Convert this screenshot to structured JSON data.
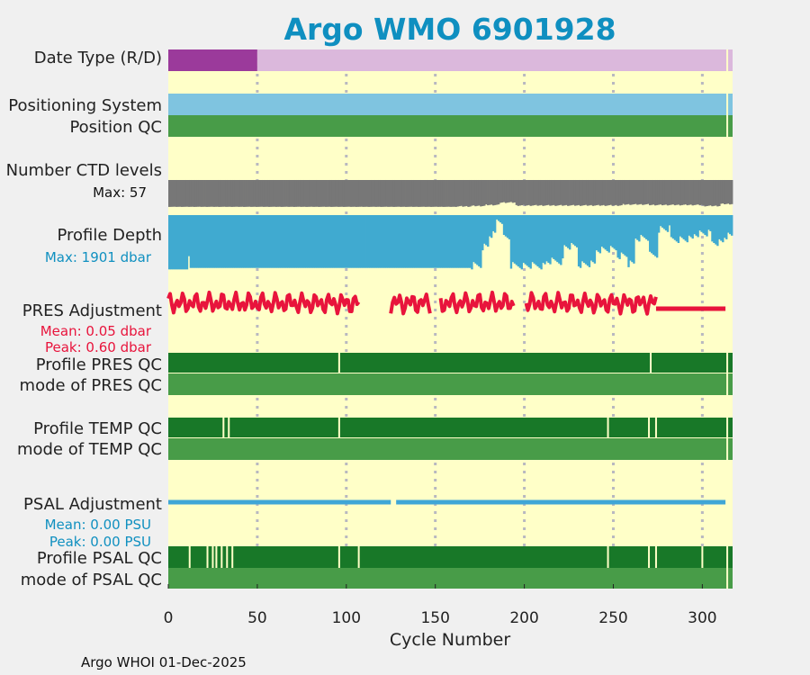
{
  "title": "Argo WMO 6901928",
  "footer": "Argo WHOI 01-Dec-2025",
  "colors": {
    "background": "#f0f0f0",
    "panel": "#ffffc8",
    "title": "#0f8fc0",
    "blue_text": "#1090c0",
    "red": "#e8143c",
    "dark_green": "#187828",
    "mid_green": "#489c48",
    "purple": "#9b3a9b",
    "light_purple": "#dbb8dc",
    "light_blue": "#7fc4e0",
    "gray": "#777777",
    "depth_blue": "#40aad0",
    "psal_blue": "#3fa6d6"
  },
  "chart_data": {
    "type": "multi-panel",
    "xlabel": "Cycle Number",
    "xlim": [
      0,
      317
    ],
    "xticks": [
      0,
      50,
      100,
      150,
      200,
      250,
      300
    ],
    "grid": "vertical dotted at x ticks",
    "rows": [
      {
        "name": "date-type",
        "label": "Date Type (R/D)",
        "segments": [
          {
            "from": 0,
            "to": 50,
            "color": "#9b3a9b"
          },
          {
            "from": 50,
            "to": 317,
            "color": "#dbb8dc"
          }
        ],
        "breaks": [
          314
        ]
      },
      {
        "name": "positioning-system",
        "label": "Positioning System",
        "segments": [
          {
            "from": 0,
            "to": 317,
            "color": "#7fc4e0"
          }
        ],
        "breaks": [
          314
        ]
      },
      {
        "name": "position-qc",
        "label": "Position QC",
        "segments": [
          {
            "from": 0,
            "to": 317,
            "color": "#489c48"
          }
        ],
        "breaks": [
          314
        ]
      },
      {
        "name": "profile-pres-qc",
        "label": "Profile PRES QC",
        "segments": [
          {
            "from": 0,
            "to": 317,
            "color": "#187828"
          }
        ],
        "breaks": [
          96,
          271,
          314
        ]
      },
      {
        "name": "mode-pres-qc",
        "label": "mode of PRES QC",
        "segments": [
          {
            "from": 0,
            "to": 317,
            "color": "#489c48"
          }
        ],
        "breaks": [
          314
        ]
      },
      {
        "name": "profile-temp-qc",
        "label": "Profile TEMP QC",
        "segments": [
          {
            "from": 0,
            "to": 317,
            "color": "#187828"
          }
        ],
        "breaks": [
          31,
          34,
          96,
          247,
          270,
          274,
          314
        ]
      },
      {
        "name": "mode-temp-qc",
        "label": "mode of TEMP QC",
        "segments": [
          {
            "from": 0,
            "to": 317,
            "color": "#489c48"
          }
        ],
        "breaks": [
          314
        ]
      },
      {
        "name": "profile-psal-qc",
        "label": "Profile PSAL QC",
        "segments": [
          {
            "from": 0,
            "to": 317,
            "color": "#187828"
          }
        ],
        "breaks": [
          12,
          22,
          25,
          27,
          30,
          33,
          36,
          96,
          107,
          247,
          270,
          274,
          300,
          314
        ]
      },
      {
        "name": "mode-psal-qc",
        "label": "mode of PSAL QC",
        "segments": [
          {
            "from": 0,
            "to": 317,
            "color": "#489c48"
          }
        ],
        "breaks": [
          314
        ]
      }
    ],
    "ctd_levels": {
      "label": "Number CTD levels",
      "max_label": "Max: 57",
      "max": 57,
      "breakpoints": [
        [
          0,
          55
        ],
        [
          170,
          54
        ],
        [
          178,
          52
        ],
        [
          186,
          47
        ],
        [
          195,
          53
        ],
        [
          240,
          53
        ],
        [
          255,
          51
        ],
        [
          270,
          52
        ],
        [
          300,
          54
        ],
        [
          310,
          50
        ],
        [
          317,
          44
        ]
      ]
    },
    "profile_depth": {
      "label": "Profile Depth",
      "max_label": "Max: 1901 dbar",
      "max": 1901,
      "breakpoints": [
        [
          0,
          1850
        ],
        [
          10,
          1850
        ],
        [
          11,
          1400
        ],
        [
          12,
          1800
        ],
        [
          170,
          1850
        ],
        [
          176,
          1200
        ],
        [
          180,
          800
        ],
        [
          184,
          300
        ],
        [
          188,
          900
        ],
        [
          192,
          1850
        ],
        [
          212,
          1700
        ],
        [
          222,
          1200
        ],
        [
          230,
          1800
        ],
        [
          240,
          1300
        ],
        [
          252,
          1500
        ],
        [
          258,
          1800
        ],
        [
          262,
          900
        ],
        [
          270,
          1500
        ],
        [
          275,
          600
        ],
        [
          282,
          950
        ],
        [
          295,
          750
        ],
        [
          305,
          1050
        ],
        [
          312,
          850
        ],
        [
          317,
          200
        ]
      ]
    },
    "pres_adjustment": {
      "label": "PRES Adjustment",
      "mean_label": "Mean: 0.05 dbar",
      "peak_label": "Peak: 0.60 dbar",
      "mean": 0.05,
      "peak": 0.6,
      "ylim": [
        -0.7,
        0.7
      ],
      "gaps": [
        [
          108,
          124
        ],
        [
          148,
          152
        ],
        [
          195,
          200
        ]
      ],
      "constant_from": 274,
      "constant_to": 313
    },
    "psal_adjustment": {
      "label": "PSAL Adjustment",
      "mean_label": "Mean: 0.00 PSU",
      "peak_label": "Peak: 0.00 PSU",
      "mean": 0.0,
      "peak": 0.0,
      "segments": [
        [
          0,
          125
        ],
        [
          128,
          313
        ]
      ]
    }
  }
}
